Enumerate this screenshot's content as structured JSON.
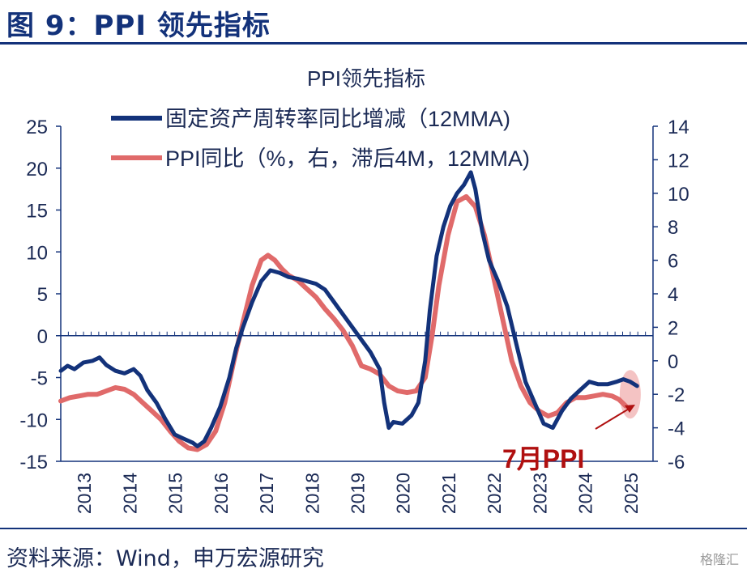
{
  "header": {
    "figure_title": "图 9：PPI 领先指标"
  },
  "footer": {
    "source": "资料来源：Wind，申万宏源研究",
    "watermark": "格隆汇"
  },
  "colors": {
    "navy": "#13327a",
    "series1": "#13327a",
    "series2": "#e06a6a",
    "annotation": "#b01010",
    "highlight": "#f2b9b9"
  },
  "chart_data": {
    "type": "line",
    "title": "PPI领先指标",
    "annotation": "7月PPI",
    "x_ticks": [
      "2013",
      "2014",
      "2015",
      "2016",
      "2017",
      "2018",
      "2019",
      "2020",
      "2021",
      "2022",
      "2023",
      "2024",
      "2025"
    ],
    "y_left": {
      "range": [
        -15,
        25
      ],
      "ticks": [
        "25",
        "20",
        "15",
        "10",
        "5",
        "0",
        "-5",
        "-10",
        "-15"
      ]
    },
    "y_right": {
      "range": [
        -6,
        14
      ],
      "ticks": [
        "14",
        "12",
        "10",
        "8",
        "6",
        "4",
        "2",
        "0",
        "-2",
        "-4",
        "-6"
      ]
    },
    "series": [
      {
        "name": "固定资产周转率同比增减（12MMA)",
        "axis": "left",
        "points": [
          [
            2013.0,
            -4.2
          ],
          [
            2013.15,
            -3.6
          ],
          [
            2013.3,
            -4.0
          ],
          [
            2013.5,
            -3.2
          ],
          [
            2013.7,
            -3.0
          ],
          [
            2013.85,
            -2.6
          ],
          [
            2014.0,
            -3.5
          ],
          [
            2014.2,
            -4.2
          ],
          [
            2014.4,
            -4.5
          ],
          [
            2014.6,
            -4.0
          ],
          [
            2014.75,
            -4.8
          ],
          [
            2014.9,
            -6.5
          ],
          [
            2015.1,
            -8.0
          ],
          [
            2015.3,
            -10.0
          ],
          [
            2015.5,
            -11.8
          ],
          [
            2015.7,
            -12.3
          ],
          [
            2015.9,
            -12.8
          ],
          [
            2016.0,
            -13.2
          ],
          [
            2016.15,
            -12.6
          ],
          [
            2016.3,
            -11.0
          ],
          [
            2016.5,
            -8.5
          ],
          [
            2016.7,
            -5.0
          ],
          [
            2016.85,
            -1.5
          ],
          [
            2017.0,
            1.0
          ],
          [
            2017.2,
            4.0
          ],
          [
            2017.4,
            6.5
          ],
          [
            2017.6,
            7.8
          ],
          [
            2017.8,
            7.5
          ],
          [
            2018.0,
            7.0
          ],
          [
            2018.2,
            6.8
          ],
          [
            2018.4,
            6.5
          ],
          [
            2018.6,
            6.2
          ],
          [
            2018.8,
            5.5
          ],
          [
            2019.0,
            4.0
          ],
          [
            2019.2,
            2.5
          ],
          [
            2019.4,
            1.0
          ],
          [
            2019.6,
            -0.5
          ],
          [
            2019.8,
            -2.0
          ],
          [
            2020.0,
            -4.0
          ],
          [
            2020.1,
            -8.0
          ],
          [
            2020.2,
            -11.0
          ],
          [
            2020.3,
            -10.3
          ],
          [
            2020.5,
            -10.5
          ],
          [
            2020.7,
            -9.5
          ],
          [
            2020.85,
            -8.0
          ],
          [
            2021.0,
            -3.0
          ],
          [
            2021.1,
            3.0
          ],
          [
            2021.25,
            9.5
          ],
          [
            2021.4,
            13.0
          ],
          [
            2021.55,
            15.5
          ],
          [
            2021.7,
            17.0
          ],
          [
            2021.85,
            18.0
          ],
          [
            2022.0,
            19.5
          ],
          [
            2022.1,
            17.5
          ],
          [
            2022.25,
            12.5
          ],
          [
            2022.4,
            9.0
          ],
          [
            2022.6,
            6.5
          ],
          [
            2022.8,
            3.5
          ],
          [
            2023.0,
            -1.0
          ],
          [
            2023.2,
            -5.5
          ],
          [
            2023.4,
            -8.0
          ],
          [
            2023.6,
            -10.5
          ],
          [
            2023.8,
            -11.0
          ],
          [
            2024.0,
            -9.0
          ],
          [
            2024.2,
            -7.5
          ],
          [
            2024.4,
            -6.5
          ],
          [
            2024.6,
            -5.5
          ],
          [
            2024.8,
            -5.8
          ],
          [
            2025.0,
            -5.8
          ],
          [
            2025.2,
            -5.5
          ],
          [
            2025.35,
            -5.2
          ],
          [
            2025.5,
            -5.5
          ],
          [
            2025.65,
            -6.0
          ]
        ]
      },
      {
        "name": "PPI同比（%，右，滞后4M，12MMA)",
        "axis": "right",
        "points": [
          [
            2013.0,
            -2.4
          ],
          [
            2013.2,
            -2.2
          ],
          [
            2013.4,
            -2.1
          ],
          [
            2013.6,
            -2.0
          ],
          [
            2013.8,
            -2.0
          ],
          [
            2014.0,
            -1.8
          ],
          [
            2014.2,
            -1.6
          ],
          [
            2014.4,
            -1.7
          ],
          [
            2014.6,
            -2.0
          ],
          [
            2014.8,
            -2.5
          ],
          [
            2015.0,
            -3.0
          ],
          [
            2015.2,
            -3.5
          ],
          [
            2015.4,
            -4.2
          ],
          [
            2015.6,
            -4.8
          ],
          [
            2015.8,
            -5.2
          ],
          [
            2016.0,
            -5.3
          ],
          [
            2016.2,
            -5.0
          ],
          [
            2016.4,
            -4.2
          ],
          [
            2016.6,
            -2.5
          ],
          [
            2016.8,
            0.0
          ],
          [
            2017.0,
            2.3
          ],
          [
            2017.2,
            4.5
          ],
          [
            2017.4,
            6.0
          ],
          [
            2017.55,
            6.3
          ],
          [
            2017.7,
            6.0
          ],
          [
            2017.85,
            5.5
          ],
          [
            2018.0,
            5.1
          ],
          [
            2018.2,
            4.8
          ],
          [
            2018.4,
            4.3
          ],
          [
            2018.6,
            3.8
          ],
          [
            2018.8,
            3.1
          ],
          [
            2019.0,
            2.5
          ],
          [
            2019.2,
            1.8
          ],
          [
            2019.4,
            0.9
          ],
          [
            2019.6,
            -0.3
          ],
          [
            2019.8,
            -0.5
          ],
          [
            2020.0,
            -0.8
          ],
          [
            2020.2,
            -1.5
          ],
          [
            2020.4,
            -1.8
          ],
          [
            2020.6,
            -1.9
          ],
          [
            2020.8,
            -1.8
          ],
          [
            2021.0,
            -1.0
          ],
          [
            2021.15,
            1.5
          ],
          [
            2021.3,
            4.5
          ],
          [
            2021.5,
            7.5
          ],
          [
            2021.7,
            9.5
          ],
          [
            2021.9,
            9.8
          ],
          [
            2022.1,
            9.2
          ],
          [
            2022.3,
            7.5
          ],
          [
            2022.5,
            5.0
          ],
          [
            2022.7,
            2.5
          ],
          [
            2022.9,
            0.0
          ],
          [
            2023.1,
            -1.5
          ],
          [
            2023.3,
            -2.5
          ],
          [
            2023.5,
            -3.0
          ],
          [
            2023.7,
            -3.3
          ],
          [
            2023.9,
            -3.1
          ],
          [
            2024.1,
            -2.5
          ],
          [
            2024.3,
            -2.2
          ],
          [
            2024.5,
            -2.2
          ],
          [
            2024.7,
            -2.1
          ],
          [
            2024.9,
            -2.0
          ],
          [
            2025.1,
            -2.1
          ],
          [
            2025.25,
            -2.3
          ],
          [
            2025.4,
            -2.7
          ]
        ]
      }
    ]
  }
}
